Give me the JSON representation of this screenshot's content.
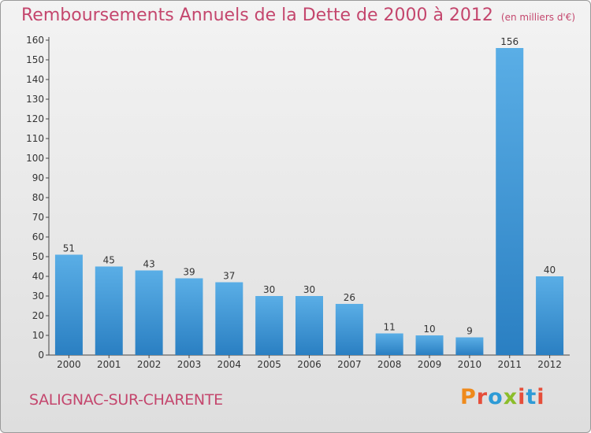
{
  "header": {
    "title": "Remboursements Annuels de la Dette de 2000 à 2012",
    "unit": "(en milliers d'€)"
  },
  "footer": {
    "commune": "SALIGNAC-SUR-CHARENTE",
    "logo_text": "Proxiti",
    "logo_colors": [
      "#ef8a1c",
      "#e64e3a",
      "#2e9bd6",
      "#8bbd2a",
      "#e64e3a",
      "#2e9bd6",
      "#e64e3a"
    ]
  },
  "colors": {
    "title": "#c4466d",
    "bar_light": "#5aaee6",
    "bar_dark": "#2a7fc2"
  },
  "chart_data": {
    "type": "bar",
    "categories": [
      "2000",
      "2001",
      "2002",
      "2003",
      "2004",
      "2005",
      "2006",
      "2007",
      "2008",
      "2009",
      "2010",
      "2011",
      "2012"
    ],
    "values": [
      51,
      45,
      43,
      39,
      37,
      30,
      30,
      26,
      11,
      10,
      9,
      156,
      40
    ],
    "ylim": [
      0,
      160
    ],
    "yticks": [
      0,
      10,
      20,
      30,
      40,
      50,
      60,
      70,
      80,
      90,
      100,
      110,
      120,
      130,
      140,
      150,
      160
    ],
    "data_labels": true,
    "grid": false
  }
}
